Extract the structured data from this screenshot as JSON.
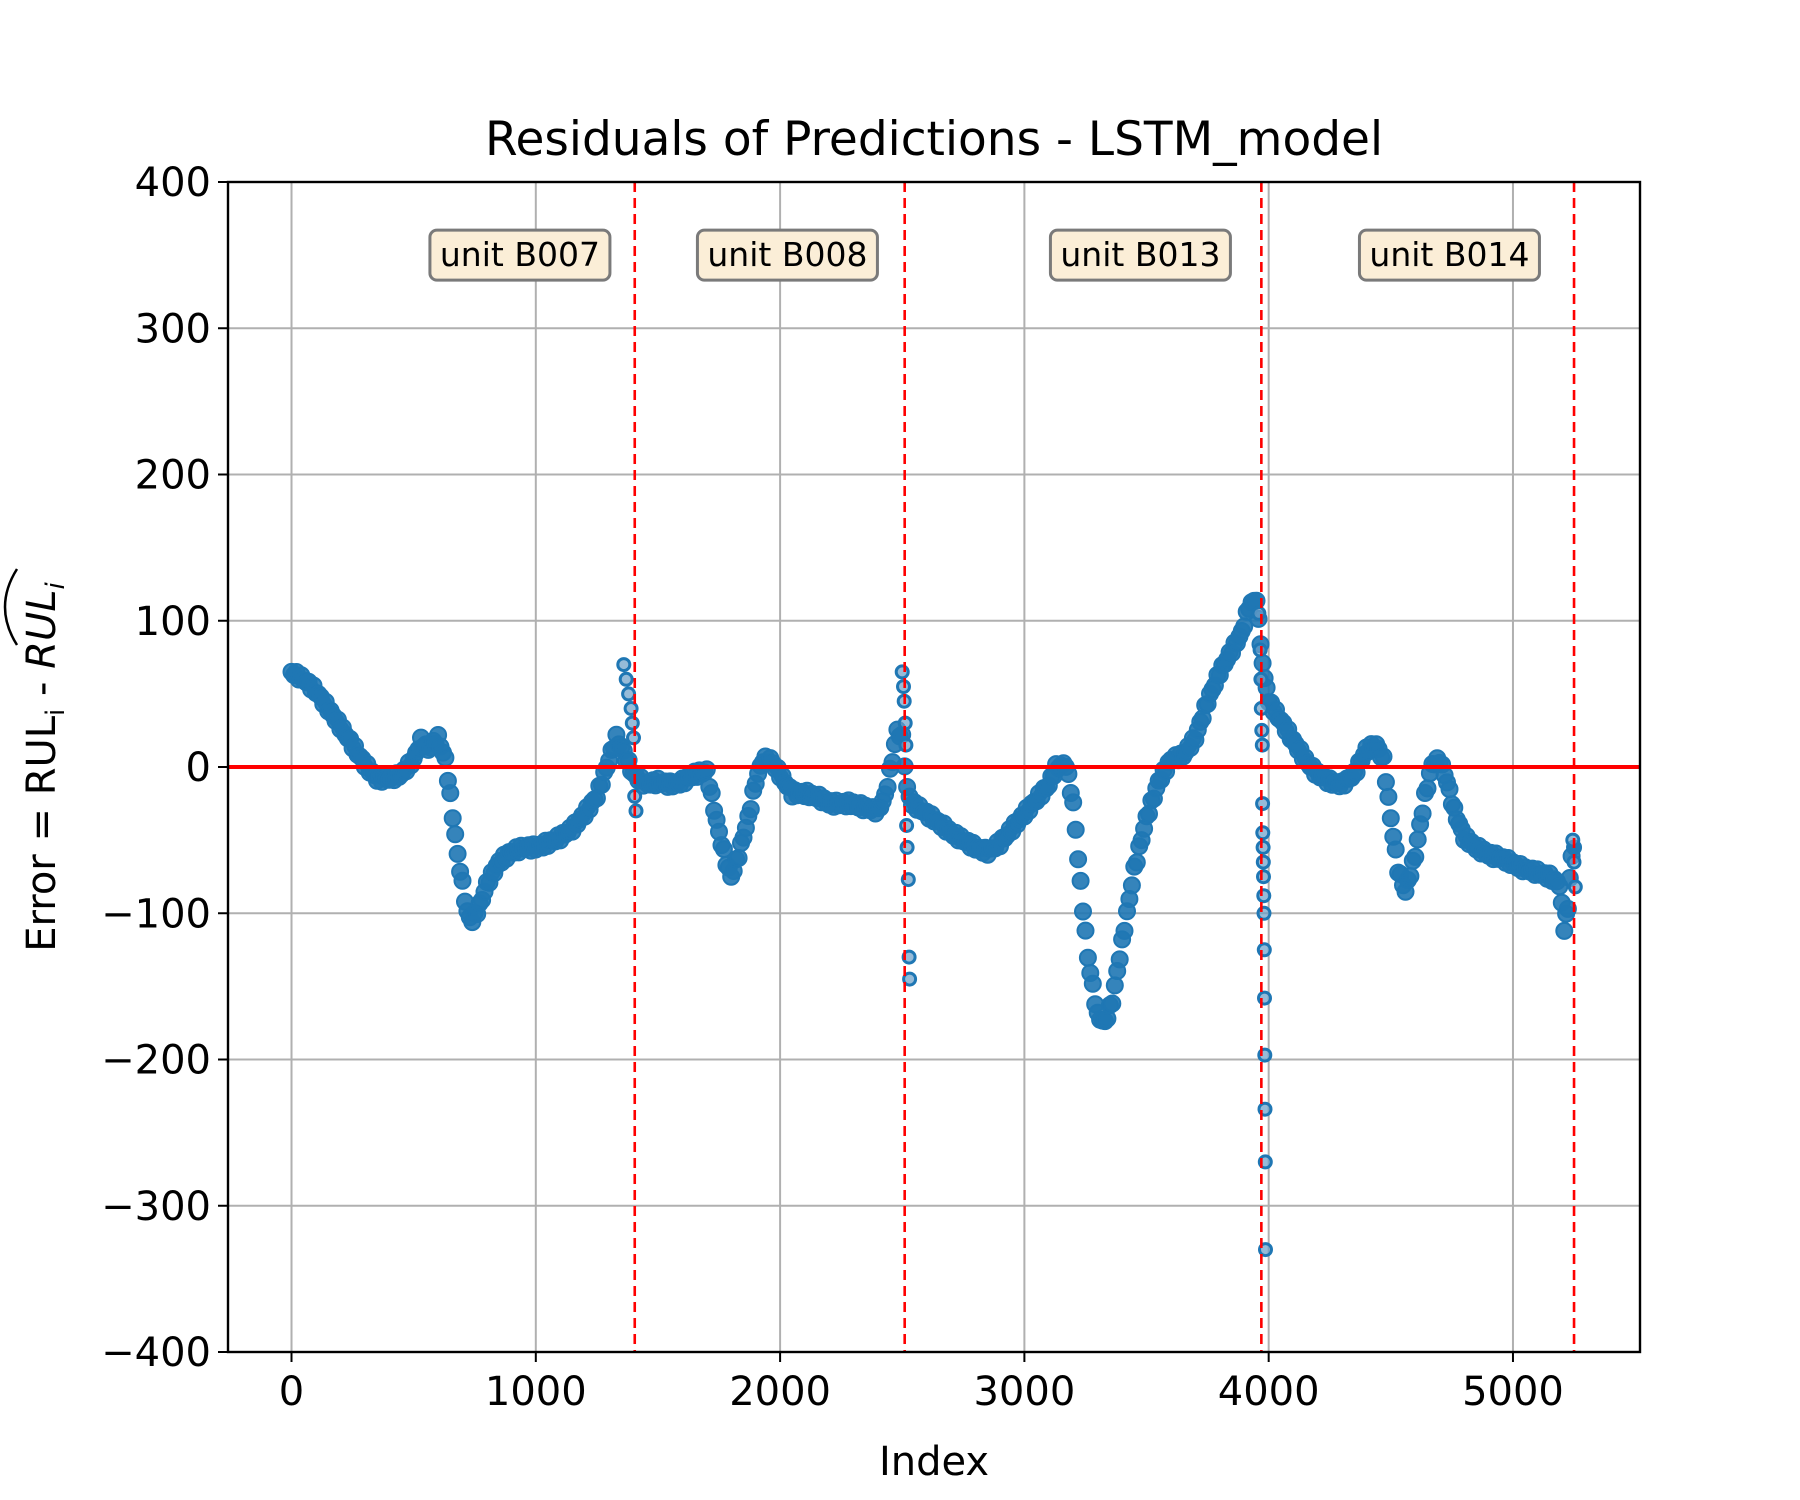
{
  "chart_data": {
    "type": "scatter",
    "title": "Residuals of Predictions - LSTM_model",
    "xlabel": "Index",
    "ylabel": "Error = RUL_i - RUL̂_i",
    "ylabel_parts": {
      "prefix": "Error = RUL",
      "sub1": "i",
      "dash": " - ",
      "hat": "RUL",
      "sub2": "i"
    },
    "xlim": [
      -260,
      5520
    ],
    "ylim": [
      -400,
      400
    ],
    "x_ticks": [
      0,
      1000,
      2000,
      3000,
      4000,
      5000
    ],
    "x_tick_labels": [
      "0",
      "1000",
      "2000",
      "3000",
      "4000",
      "5000"
    ],
    "y_ticks": [
      400,
      300,
      200,
      100,
      0,
      -100,
      -200,
      -300,
      -400
    ],
    "y_tick_labels": [
      "400",
      "300",
      "200",
      "100",
      "0",
      "−100",
      "−200",
      "−300",
      "−400"
    ],
    "grid": true,
    "zero_line": {
      "y": 0,
      "color": "#ff0000"
    },
    "unit_boundaries": [
      1405,
      2510,
      3970,
      5250
    ],
    "boundary_color": "#ff0000",
    "unit_annotations": [
      {
        "label": "unit B007",
        "x": 935,
        "y": 350
      },
      {
        "label": "unit B008",
        "x": 2030,
        "y": 350
      },
      {
        "label": "unit B013",
        "x": 3475,
        "y": 350
      },
      {
        "label": "unit B014",
        "x": 4740,
        "y": 350
      }
    ],
    "series": [
      {
        "color": "#1f77b4",
        "trend": [
          [
            0,
            65
          ],
          [
            50,
            60
          ],
          [
            100,
            52
          ],
          [
            150,
            40
          ],
          [
            200,
            28
          ],
          [
            250,
            15
          ],
          [
            300,
            2
          ],
          [
            350,
            -8
          ],
          [
            400,
            -8
          ],
          [
            450,
            -5
          ],
          [
            500,
            5
          ],
          [
            530,
            18
          ],
          [
            560,
            12
          ],
          [
            600,
            20
          ],
          [
            630,
            5
          ],
          [
            650,
            -20
          ],
          [
            680,
            -60
          ],
          [
            700,
            -80
          ],
          [
            720,
            -100
          ],
          [
            740,
            -105
          ],
          [
            770,
            -95
          ],
          [
            800,
            -80
          ],
          [
            850,
            -65
          ],
          [
            900,
            -58
          ],
          [
            950,
            -55
          ],
          [
            1000,
            -55
          ],
          [
            1050,
            -52
          ],
          [
            1100,
            -48
          ],
          [
            1150,
            -42
          ],
          [
            1200,
            -32
          ],
          [
            1250,
            -20
          ],
          [
            1280,
            -5
          ],
          [
            1300,
            5
          ],
          [
            1330,
            20
          ],
          [
            1360,
            10
          ],
          [
            1400,
            -5
          ],
          [
            1450,
            -12
          ],
          [
            1500,
            -10
          ],
          [
            1550,
            -12
          ],
          [
            1600,
            -10
          ],
          [
            1650,
            -5
          ],
          [
            1700,
            -3
          ],
          [
            1720,
            -20
          ],
          [
            1750,
            -45
          ],
          [
            1780,
            -65
          ],
          [
            1800,
            -75
          ],
          [
            1830,
            -60
          ],
          [
            1870,
            -35
          ],
          [
            1900,
            -10
          ],
          [
            1930,
            5
          ],
          [
            1960,
            5
          ],
          [
            2000,
            -5
          ],
          [
            2050,
            -18
          ],
          [
            2100,
            -18
          ],
          [
            2150,
            -20
          ],
          [
            2200,
            -25
          ],
          [
            2250,
            -25
          ],
          [
            2300,
            -25
          ],
          [
            2350,
            -28
          ],
          [
            2400,
            -30
          ],
          [
            2430,
            -20
          ],
          [
            2460,
            5
          ],
          [
            2480,
            25
          ],
          [
            2500,
            20
          ],
          [
            2520,
            -15
          ],
          [
            2540,
            -25
          ],
          [
            2570,
            -28
          ],
          [
            2600,
            -32
          ],
          [
            2650,
            -38
          ],
          [
            2700,
            -45
          ],
          [
            2750,
            -50
          ],
          [
            2800,
            -55
          ],
          [
            2850,
            -58
          ],
          [
            2900,
            -52
          ],
          [
            2950,
            -42
          ],
          [
            3000,
            -32
          ],
          [
            3050,
            -22
          ],
          [
            3100,
            -12
          ],
          [
            3130,
            0
          ],
          [
            3170,
            2
          ],
          [
            3200,
            -25
          ],
          [
            3230,
            -80
          ],
          [
            3260,
            -130
          ],
          [
            3300,
            -170
          ],
          [
            3330,
            -175
          ],
          [
            3360,
            -160
          ],
          [
            3400,
            -120
          ],
          [
            3450,
            -70
          ],
          [
            3500,
            -35
          ],
          [
            3550,
            -10
          ],
          [
            3600,
            5
          ],
          [
            3650,
            8
          ],
          [
            3700,
            20
          ],
          [
            3750,
            45
          ],
          [
            3800,
            65
          ],
          [
            3850,
            80
          ],
          [
            3890,
            92
          ],
          [
            3920,
            110
          ],
          [
            3950,
            115
          ],
          [
            3975,
            70
          ],
          [
            4000,
            45
          ],
          [
            4050,
            32
          ],
          [
            4100,
            18
          ],
          [
            4150,
            5
          ],
          [
            4200,
            -5
          ],
          [
            4250,
            -10
          ],
          [
            4300,
            -12
          ],
          [
            4350,
            -5
          ],
          [
            4400,
            12
          ],
          [
            4440,
            15
          ],
          [
            4470,
            5
          ],
          [
            4500,
            -35
          ],
          [
            4530,
            -70
          ],
          [
            4560,
            -85
          ],
          [
            4600,
            -60
          ],
          [
            4640,
            -20
          ],
          [
            4670,
            2
          ],
          [
            4700,
            5
          ],
          [
            4730,
            -10
          ],
          [
            4760,
            -30
          ],
          [
            4800,
            -48
          ],
          [
            4850,
            -55
          ],
          [
            4900,
            -60
          ],
          [
            4950,
            -62
          ],
          [
            5000,
            -66
          ],
          [
            5050,
            -70
          ],
          [
            5100,
            -72
          ],
          [
            5150,
            -75
          ],
          [
            5190,
            -80
          ],
          [
            5210,
            -110
          ],
          [
            5225,
            -95
          ],
          [
            5240,
            -60
          ],
          [
            5250,
            -55
          ]
        ],
        "outliers": [
          [
            1360,
            70
          ],
          [
            1370,
            60
          ],
          [
            1380,
            50
          ],
          [
            1390,
            40
          ],
          [
            1395,
            30
          ],
          [
            1400,
            20
          ],
          [
            1405,
            -20
          ],
          [
            1410,
            -30
          ],
          [
            2500,
            65
          ],
          [
            2505,
            55
          ],
          [
            2508,
            45
          ],
          [
            2512,
            30
          ],
          [
            2515,
            15
          ],
          [
            2518,
            -40
          ],
          [
            2520,
            -55
          ],
          [
            2525,
            -77
          ],
          [
            2528,
            -130
          ],
          [
            2530,
            -145
          ],
          [
            3960,
            105
          ],
          [
            3965,
            80
          ],
          [
            3968,
            60
          ],
          [
            3970,
            40
          ],
          [
            3972,
            25
          ],
          [
            3974,
            15
          ],
          [
            3975,
            -25
          ],
          [
            3976,
            -45
          ],
          [
            3977,
            -55
          ],
          [
            3978,
            -65
          ],
          [
            3979,
            -75
          ],
          [
            3980,
            -88
          ],
          [
            3981,
            -100
          ],
          [
            3982,
            -125
          ],
          [
            3983,
            -158
          ],
          [
            3984,
            -197
          ],
          [
            3985,
            -234
          ],
          [
            3986,
            -270
          ],
          [
            3987,
            -330
          ],
          [
            5245,
            -50
          ],
          [
            5250,
            -65
          ],
          [
            5255,
            -82
          ]
        ]
      }
    ]
  }
}
